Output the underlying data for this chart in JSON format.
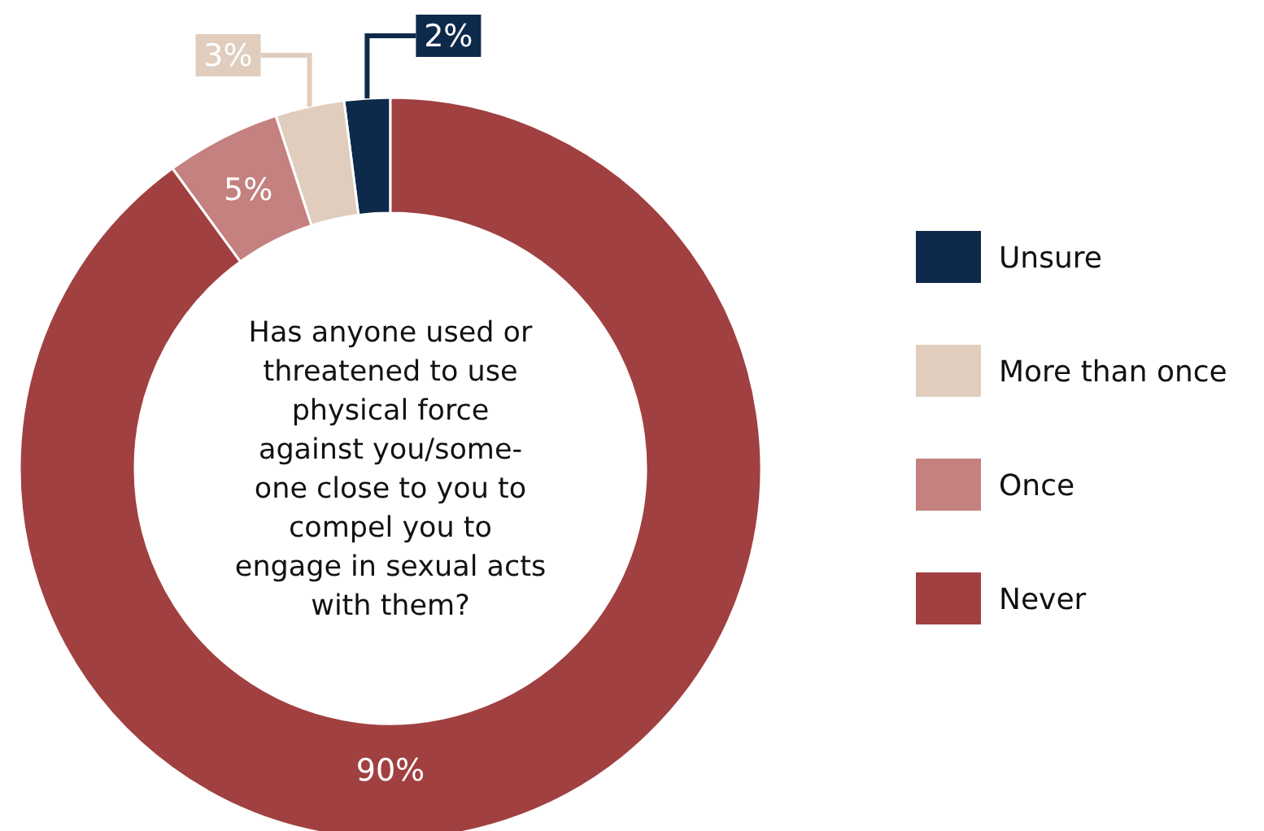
{
  "chart_data": {
    "type": "donut",
    "title": "Has anyone used or\nthreatened to use\nphysical force\nagainst you/some-\none close to you to\ncompel you to\nengage in sexual acts\nwith them?",
    "categories": [
      "Unsure",
      "More than once",
      "Once",
      "Never"
    ],
    "values": [
      2,
      3,
      5,
      90
    ],
    "colors": [
      "#0e2a4b",
      "#e0cdbd",
      "#c58080",
      "#a14041"
    ],
    "value_labels": [
      "2%",
      "3%",
      "5%",
      "90%"
    ],
    "legend": "right"
  }
}
